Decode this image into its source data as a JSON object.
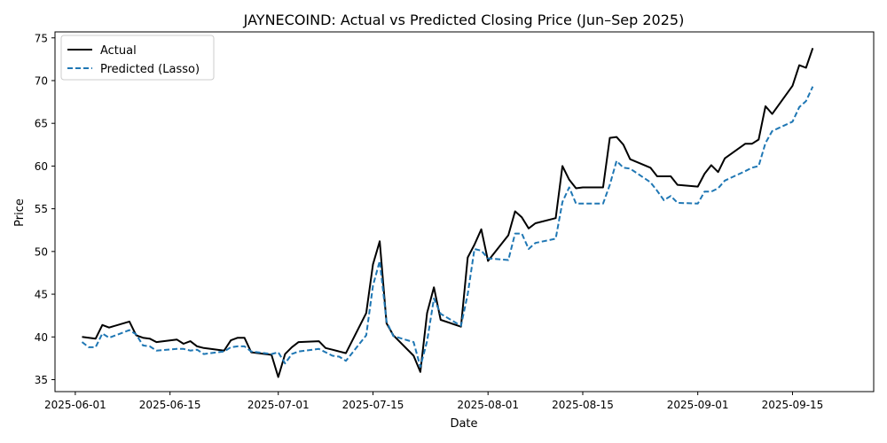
{
  "chart_data": {
    "type": "line",
    "title": "JAYNECOIND: Actual vs Predicted Closing Price (Jun–Sep 2025)",
    "xlabel": "Date",
    "ylabel": "Price",
    "x_ticks": [
      "2025-06-01",
      "2025-06-15",
      "2025-07-01",
      "2025-07-15",
      "2025-08-01",
      "2025-08-15",
      "2025-09-01",
      "2025-09-15"
    ],
    "y_ticks": [
      35,
      40,
      45,
      50,
      55,
      60,
      65,
      70,
      75
    ],
    "xlim": [
      "2025-05-29",
      "2025-09-27"
    ],
    "ylim": [
      33.6,
      75.7
    ],
    "legend": "upper left",
    "grid": false,
    "x": [
      "2025-06-02",
      "2025-06-03",
      "2025-06-04",
      "2025-06-05",
      "2025-06-06",
      "2025-06-09",
      "2025-06-10",
      "2025-06-11",
      "2025-06-12",
      "2025-06-13",
      "2025-06-16",
      "2025-06-17",
      "2025-06-18",
      "2025-06-19",
      "2025-06-20",
      "2025-06-23",
      "2025-06-24",
      "2025-06-25",
      "2025-06-26",
      "2025-06-27",
      "2025-06-30",
      "2025-07-01",
      "2025-07-02",
      "2025-07-03",
      "2025-07-04",
      "2025-07-07",
      "2025-07-08",
      "2025-07-09",
      "2025-07-10",
      "2025-07-11",
      "2025-07-14",
      "2025-07-15",
      "2025-07-16",
      "2025-07-17",
      "2025-07-18",
      "2025-07-21",
      "2025-07-22",
      "2025-07-23",
      "2025-07-24",
      "2025-07-25",
      "2025-07-28",
      "2025-07-29",
      "2025-07-30",
      "2025-07-31",
      "2025-08-01",
      "2025-08-04",
      "2025-08-05",
      "2025-08-06",
      "2025-08-07",
      "2025-08-08",
      "2025-08-11",
      "2025-08-12",
      "2025-08-13",
      "2025-08-14",
      "2025-08-15",
      "2025-08-18",
      "2025-08-19",
      "2025-08-20",
      "2025-08-21",
      "2025-08-22",
      "2025-08-25",
      "2025-08-26",
      "2025-08-27",
      "2025-08-28",
      "2025-08-29",
      "2025-09-01",
      "2025-09-02",
      "2025-09-03",
      "2025-09-04",
      "2025-09-05",
      "2025-09-08",
      "2025-09-09",
      "2025-09-10",
      "2025-09-11",
      "2025-09-12",
      "2025-09-15",
      "2025-09-16",
      "2025-09-17",
      "2025-09-18"
    ],
    "series": [
      {
        "name": "Actual",
        "color": "#000000",
        "style": "solid",
        "values": [
          40.0,
          39.9,
          39.8,
          41.4,
          41.1,
          41.8,
          40.2,
          39.9,
          39.8,
          39.4,
          39.7,
          39.2,
          39.5,
          38.9,
          38.7,
          38.4,
          39.6,
          39.9,
          39.9,
          38.2,
          37.9,
          35.3,
          38.0,
          38.8,
          39.4,
          39.5,
          38.7,
          38.5,
          38.3,
          38.1,
          42.8,
          48.5,
          51.2,
          41.6,
          40.2,
          37.8,
          35.9,
          42.8,
          45.8,
          42.0,
          41.2,
          49.3,
          50.8,
          52.6,
          48.9,
          51.9,
          54.7,
          54.0,
          52.7,
          53.3,
          53.9,
          60.0,
          58.4,
          57.4,
          57.5,
          57.5,
          63.3,
          63.4,
          62.5,
          60.8,
          59.8,
          58.8,
          58.8,
          58.8,
          57.8,
          57.6,
          59.1,
          60.1,
          59.3,
          60.9,
          62.6,
          62.6,
          63.1,
          67.0,
          66.1,
          69.4,
          71.8,
          71.5,
          73.8
        ]
      },
      {
        "name": "Predicted (Lasso)",
        "color": "#1f77b4",
        "style": "dashed",
        "values": [
          39.4,
          38.8,
          38.8,
          40.4,
          39.9,
          40.8,
          40.3,
          39.0,
          38.9,
          38.4,
          38.6,
          38.6,
          38.4,
          38.5,
          38.0,
          38.3,
          38.8,
          38.9,
          38.9,
          38.3,
          38.0,
          38.2,
          36.9,
          38.0,
          38.3,
          38.6,
          38.2,
          37.8,
          37.7,
          37.2,
          40.2,
          46.0,
          48.9,
          41.8,
          40.1,
          39.4,
          36.5,
          39.5,
          44.5,
          42.7,
          41.3,
          45.0,
          50.3,
          50.1,
          49.2,
          49.0,
          52.1,
          52.1,
          50.3,
          51.0,
          51.5,
          55.8,
          57.5,
          55.6,
          55.6,
          55.6,
          57.8,
          60.6,
          59.8,
          59.7,
          58.1,
          57.1,
          56.0,
          56.5,
          55.7,
          55.6,
          57.0,
          57.0,
          57.4,
          58.3,
          59.4,
          59.8,
          60.0,
          62.7,
          64.1,
          65.2,
          66.9,
          67.6,
          69.3
        ]
      }
    ]
  }
}
